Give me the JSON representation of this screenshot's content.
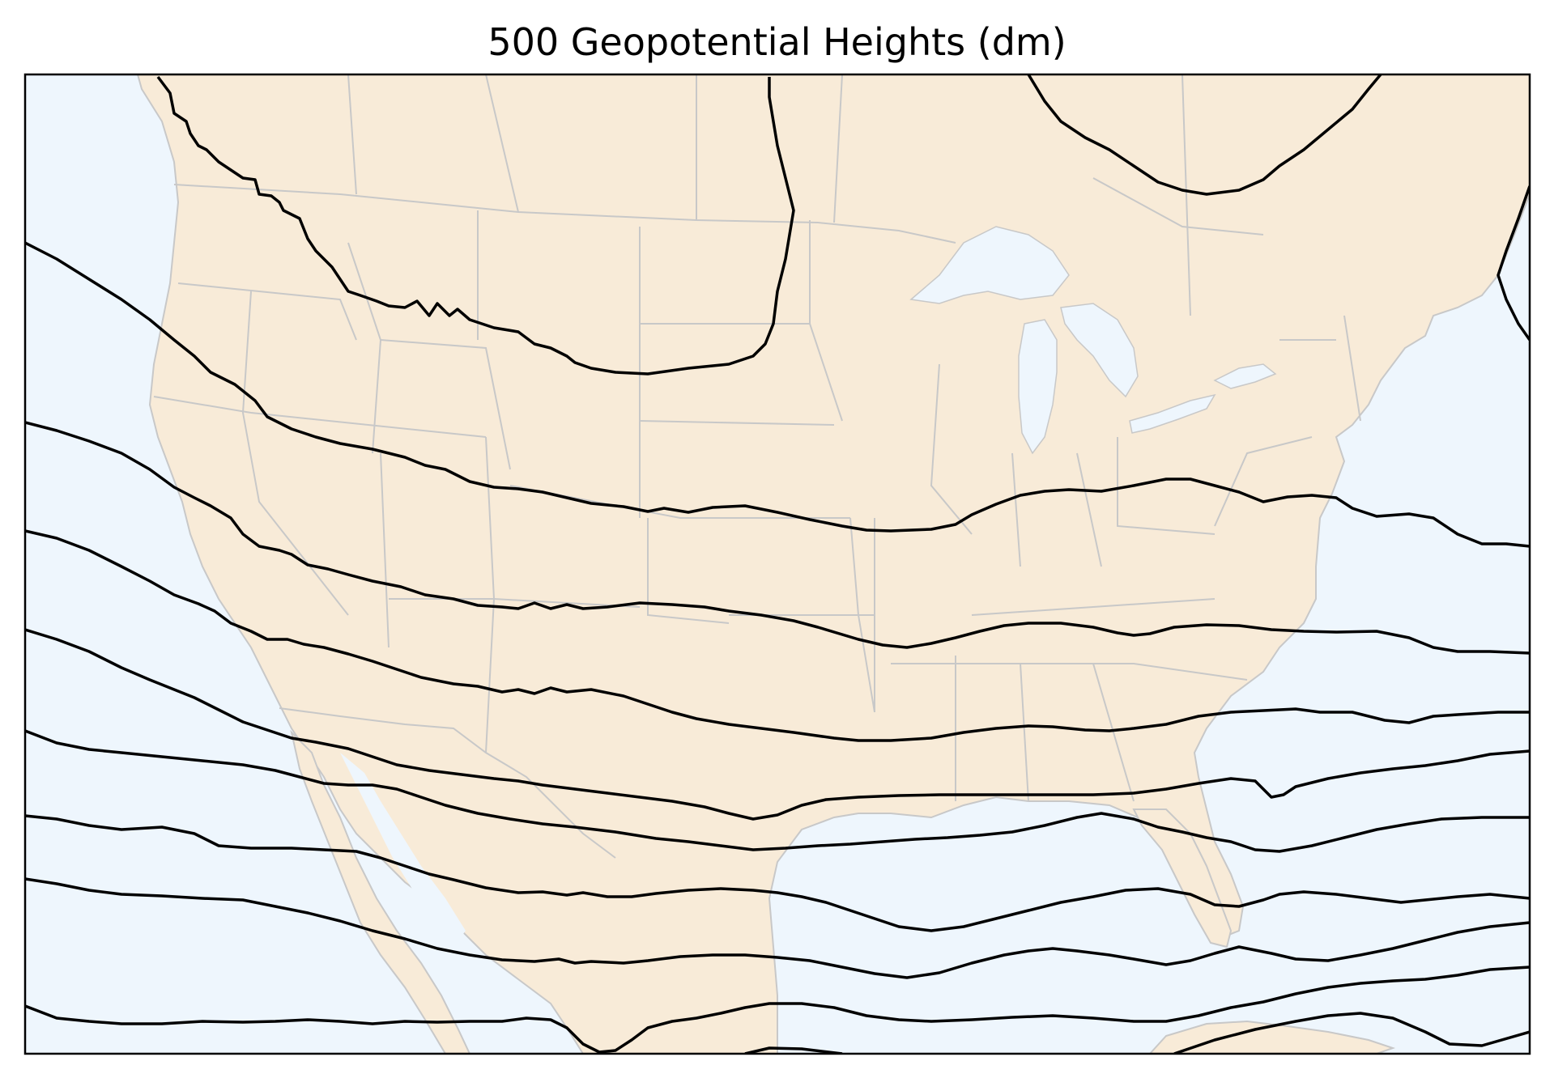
{
  "title": "500 Geopotential Heights (dm)",
  "colors": {
    "ocean": "#eef6fd",
    "land": "#f8ebd8",
    "borders": "#c8c8c8",
    "contour": "#000000",
    "frame": "#000000"
  },
  "map": {
    "projection": "Lambert Conformal",
    "region": "Continental United States",
    "features": [
      "land",
      "ocean",
      "lakes",
      "state borders",
      "country borders"
    ],
    "contours": {
      "field": "500 hPa geopotential height",
      "units": "dm",
      "labels_shown": false
    }
  }
}
